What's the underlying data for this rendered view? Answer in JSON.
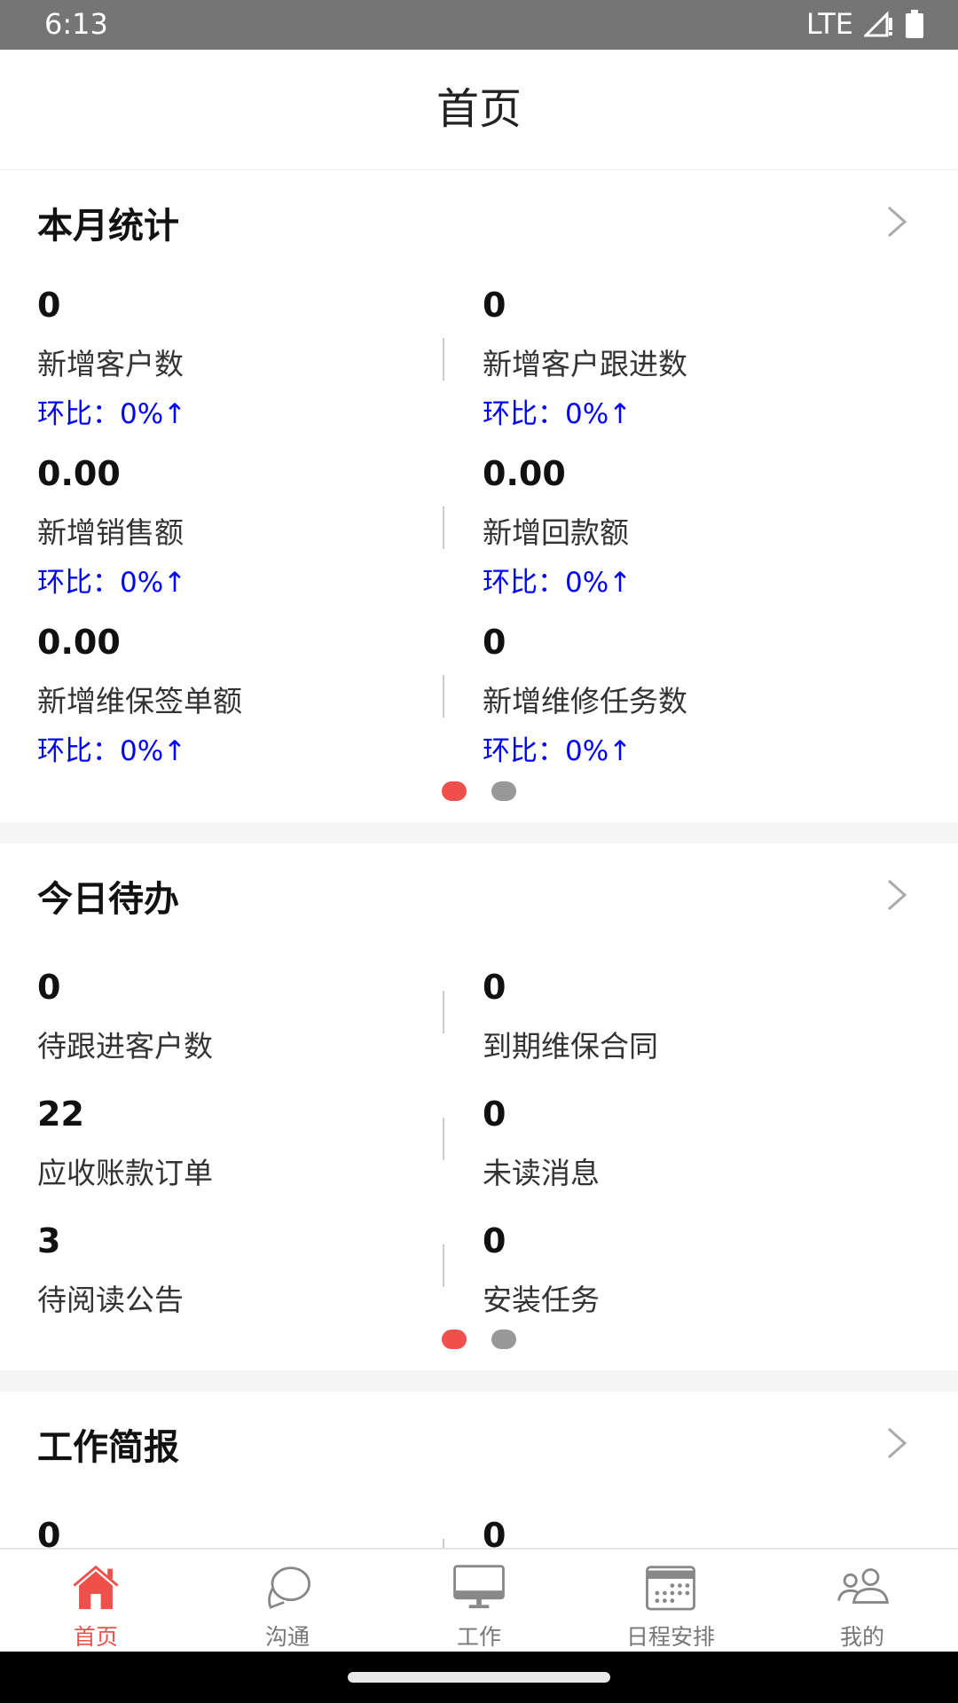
{
  "status_bar": {
    "time": "6:13",
    "network": "LTE"
  },
  "header": {
    "title": "首页"
  },
  "monthly": {
    "title": "本月统计",
    "items": [
      {
        "value": "0",
        "label": "新增客户数",
        "ratio": "环比：0%↑"
      },
      {
        "value": "0",
        "label": "新增客户跟进数",
        "ratio": "环比：0%↑"
      },
      {
        "value": "0.00",
        "label": "新增销售额",
        "ratio": "环比：0%↑"
      },
      {
        "value": "0.00",
        "label": "新增回款额",
        "ratio": "环比：0%↑"
      },
      {
        "value": "0.00",
        "label": "新增维保签单额",
        "ratio": "环比：0%↑"
      },
      {
        "value": "0",
        "label": "新增维修任务数",
        "ratio": "环比：0%↑"
      }
    ],
    "page_index": 1,
    "page_count": 2
  },
  "todo": {
    "title": "今日待办",
    "items": [
      {
        "value": "0",
        "label": "待跟进客户数"
      },
      {
        "value": "0",
        "label": "到期维保合同"
      },
      {
        "value": "22",
        "label": "应收账款订单"
      },
      {
        "value": "0",
        "label": "未读消息"
      },
      {
        "value": "3",
        "label": "待阅读公告"
      },
      {
        "value": "0",
        "label": "安装任务"
      }
    ],
    "page_index": 1,
    "page_count": 2
  },
  "report": {
    "title": "工作简报",
    "items": [
      {
        "value": "0"
      },
      {
        "value": "0"
      }
    ]
  },
  "bottom_nav": [
    {
      "label": "首页",
      "icon": "home-icon",
      "active": true
    },
    {
      "label": "沟通",
      "icon": "chat-icon"
    },
    {
      "label": "工作",
      "icon": "monitor-icon"
    },
    {
      "label": "日程安排",
      "icon": "calendar-icon"
    },
    {
      "label": "我的",
      "icon": "users-icon"
    }
  ],
  "colors": {
    "accent": "#f0504c",
    "ratio": "#0000ff"
  }
}
